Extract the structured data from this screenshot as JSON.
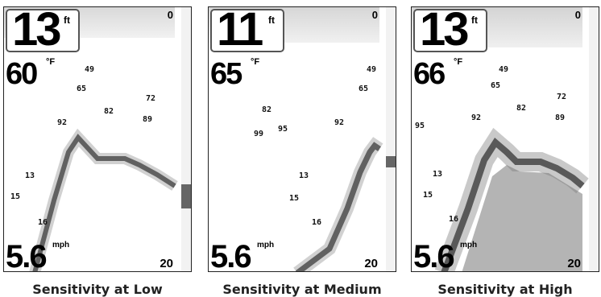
{
  "panels": [
    {
      "depth": "13",
      "depth_unit": "ft",
      "temp": "60",
      "temp_unit": "°F",
      "speed": "5.6",
      "speed_unit": "mph",
      "scale_top": "0",
      "scale_bottom": "20",
      "caption": "Sensitivity at Low",
      "fish_labels": [
        "49",
        "65",
        "72",
        "82",
        "89",
        "92",
        "13",
        "15",
        "16"
      ]
    },
    {
      "depth": "11",
      "depth_unit": "ft",
      "temp": "65",
      "temp_unit": "°F",
      "speed": "5.6",
      "speed_unit": "mph",
      "scale_top": "0",
      "scale_bottom": "20",
      "caption": "Sensitivity at Medium",
      "fish_labels": [
        "49",
        "65",
        "82",
        "92",
        "99",
        "95",
        "13",
        "15",
        "16"
      ]
    },
    {
      "depth": "13",
      "depth_unit": "ft",
      "temp": "66",
      "temp_unit": "°F",
      "speed": "5.6",
      "speed_unit": "mph",
      "scale_top": "0",
      "scale_bottom": "20",
      "caption": "Sensitivity at High",
      "fish_labels": [
        "49",
        "65",
        "72",
        "82",
        "89",
        "92",
        "95",
        "13",
        "15",
        "16"
      ]
    }
  ]
}
